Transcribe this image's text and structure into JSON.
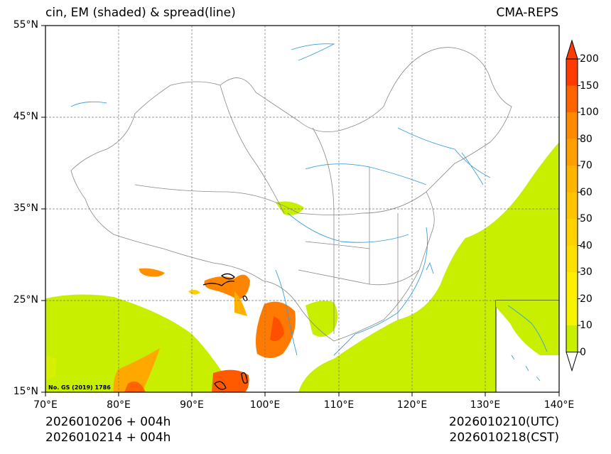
{
  "titles": {
    "left": "cin, EM (shaded) & spread(line)",
    "right": "CMA-REPS"
  },
  "axes": {
    "lat_ticks": [
      "55°N",
      "45°N",
      "35°N",
      "25°N",
      "15°N"
    ],
    "lon_ticks": [
      "70°E",
      "80°E",
      "90°E",
      "100°E",
      "110°E",
      "120°E",
      "130°E",
      "140°E"
    ]
  },
  "colorbar": {
    "levels": [
      "200",
      "150",
      "100",
      "80",
      "70",
      "60",
      "50",
      "40",
      "30",
      "20",
      "10",
      "0"
    ],
    "colors": [
      "#ff3b00",
      "#ff6400",
      "#ff8a00",
      "#ffa000",
      "#ffb400",
      "#ffc400",
      "#ffd200",
      "#ffe000",
      "#fff000",
      "#f8f400",
      "#c8ee00"
    ],
    "over_color": "#ff3b00",
    "under_color": "#ffffff"
  },
  "watermark": "No. GS (2019) 1786",
  "footer": {
    "left_line1": "2026010206  +  004h",
    "left_line2": "2026010214  +  004h",
    "right_line1": "2026010210(UTC)",
    "right_line2": "2026010218(CST)"
  }
}
